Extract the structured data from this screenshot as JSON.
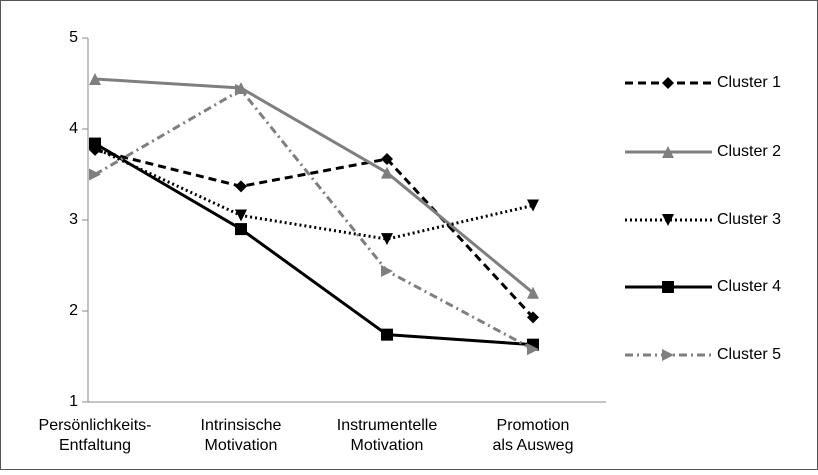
{
  "chart_data": {
    "type": "line",
    "categories": [
      [
        "Persönlichkeits-",
        "Entfaltung"
      ],
      [
        "Intrinsische",
        "Motivation"
      ],
      [
        "Instrumentelle",
        "Motivation"
      ],
      [
        "Promotion",
        "als Ausweg"
      ]
    ],
    "ylim": [
      1,
      5
    ],
    "yticks": [
      1,
      2,
      3,
      4,
      5
    ],
    "series": [
      {
        "name": "Cluster 1",
        "color": "#000000",
        "width": 3,
        "dash": "8,5",
        "marker": "diamond",
        "values": [
          3.77,
          3.37,
          3.67,
          1.93
        ]
      },
      {
        "name": "Cluster 2",
        "color": "#7f7f7f",
        "width": 3,
        "dash": "none",
        "marker": "triangle-up",
        "values": [
          4.55,
          4.45,
          3.52,
          2.2
        ]
      },
      {
        "name": "Cluster 3",
        "color": "#000000",
        "width": 3,
        "dash": "2,3",
        "marker": "triangle-down",
        "values": [
          3.79,
          3.05,
          2.79,
          3.16
        ]
      },
      {
        "name": "Cluster 4",
        "color": "#000000",
        "width": 3,
        "dash": "none",
        "marker": "square",
        "values": [
          3.84,
          2.9,
          1.74,
          1.63
        ]
      },
      {
        "name": "Cluster 5",
        "color": "#7f7f7f",
        "width": 3,
        "dash": "8,4,2,4",
        "marker": "triangle-right",
        "values": [
          3.5,
          4.43,
          2.44,
          1.58
        ]
      }
    ]
  }
}
